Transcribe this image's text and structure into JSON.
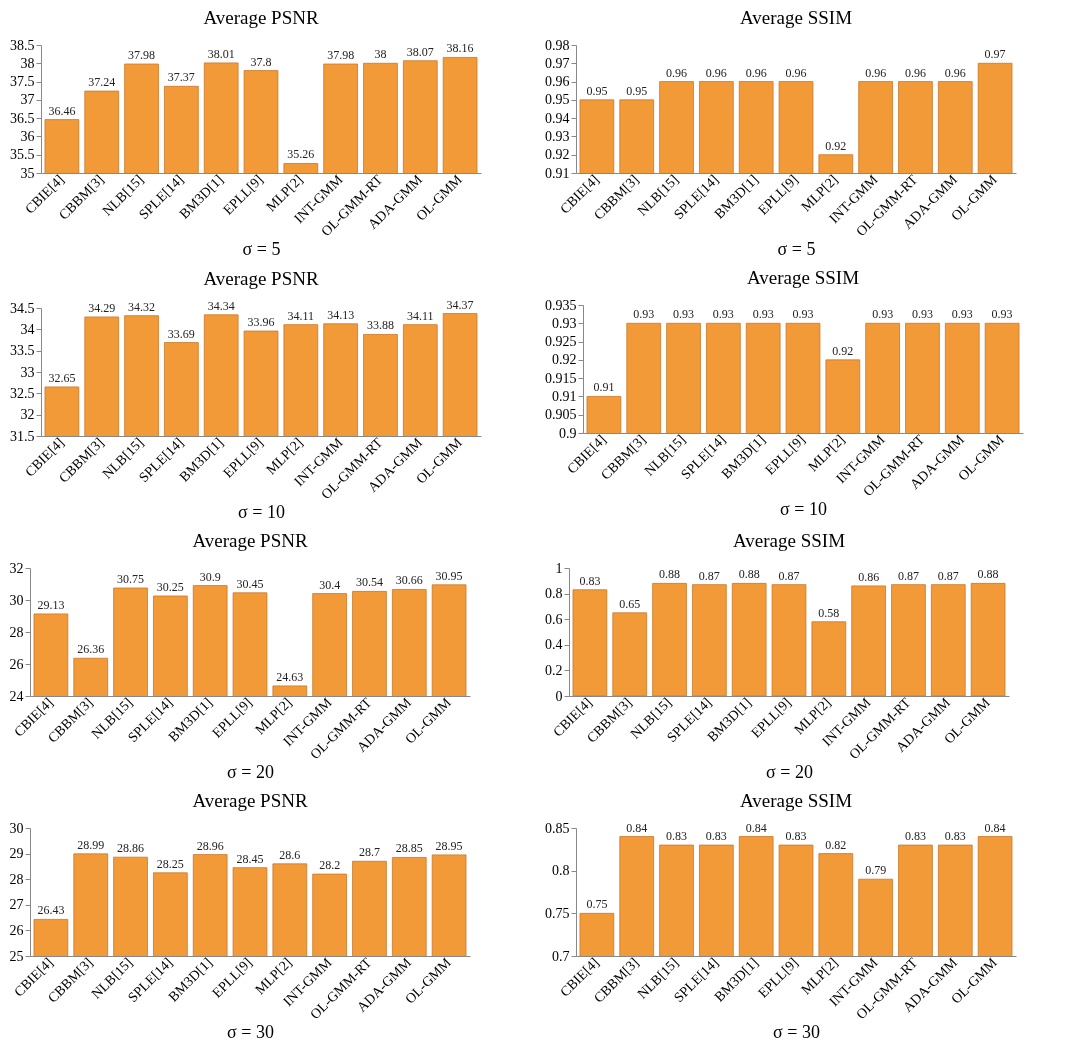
{
  "chart_data": [
    {
      "type": "bar",
      "title": "Average PSNR",
      "xlabel": "σ = 5",
      "categories": [
        "CBIE[4]",
        "CBBM[3]",
        "NLB[15]",
        "SPLE[14]",
        "BM3D[1]",
        "EPLL[9]",
        "MLP[2]",
        "INT-GMM",
        "OL-GMM-RT",
        "ADA-GMM",
        "OL-GMM"
      ],
      "values": [
        36.46,
        37.24,
        37.98,
        37.37,
        38.01,
        37.8,
        35.26,
        37.98,
        38,
        38.07,
        38.16
      ],
      "color": "#f39a38",
      "ylim": [
        35,
        38.5
      ],
      "yticks": [
        35,
        35.5,
        36,
        36.5,
        37,
        37.5,
        38,
        38.5
      ],
      "data_labels": true
    },
    {
      "type": "bar",
      "title": "Average SSIM",
      "xlabel": "σ = 5",
      "categories": [
        "CBIE[4]",
        "CBBM[3]",
        "NLB[15]",
        "SPLE[14]",
        "BM3D[1]",
        "EPLL[9]",
        "MLP[2]",
        "INT-GMM",
        "OL-GMM-RT",
        "ADA-GMM",
        "OL-GMM"
      ],
      "values": [
        0.95,
        0.95,
        0.96,
        0.96,
        0.96,
        0.96,
        0.92,
        0.96,
        0.96,
        0.96,
        0.97
      ],
      "color": "#f39a38",
      "ylim": [
        0.91,
        0.98
      ],
      "yticks": [
        0.91,
        0.92,
        0.93,
        0.94,
        0.95,
        0.96,
        0.97,
        0.98
      ],
      "data_labels": true
    },
    {
      "type": "bar",
      "title": "Average PSNR",
      "xlabel": "σ = 10",
      "categories": [
        "CBIE[4]",
        "CBBM[3]",
        "NLB[15]",
        "SPLE[14]",
        "BM3D[1]",
        "EPLL[9]",
        "MLP[2]",
        "INT-GMM",
        "OL-GMM-RT",
        "ADA-GMM",
        "OL-GMM"
      ],
      "values": [
        32.65,
        34.29,
        34.32,
        33.69,
        34.34,
        33.96,
        34.11,
        34.13,
        33.88,
        34.11,
        34.37
      ],
      "color": "#f39a38",
      "ylim": [
        31.5,
        34.5
      ],
      "yticks": [
        31.5,
        32,
        32.5,
        33,
        33.5,
        34,
        34.5
      ],
      "data_labels": true
    },
    {
      "type": "bar",
      "title": "Average SSIM",
      "xlabel": "σ = 10",
      "categories": [
        "CBIE[4]",
        "CBBM[3]",
        "NLB[15]",
        "SPLE[14]",
        "BM3D[1]",
        "EPLL[9]",
        "MLP[2]",
        "INT-GMM",
        "OL-GMM-RT",
        "ADA-GMM",
        "OL-GMM"
      ],
      "values": [
        0.91,
        0.93,
        0.93,
        0.93,
        0.93,
        0.93,
        0.92,
        0.93,
        0.93,
        0.93,
        0.93
      ],
      "color": "#f39a38",
      "ylim": [
        0.9,
        0.935
      ],
      "yticks": [
        0.9,
        0.905,
        0.91,
        0.915,
        0.92,
        0.925,
        0.93,
        0.935
      ],
      "data_labels": true
    },
    {
      "type": "bar",
      "title": "Average PSNR",
      "xlabel": "σ = 20",
      "categories": [
        "CBIE[4]",
        "CBBM[3]",
        "NLB[15]",
        "SPLE[14]",
        "BM3D[1]",
        "EPLL[9]",
        "MLP[2]",
        "INT-GMM",
        "OL-GMM-RT",
        "ADA-GMM",
        "OL-GMM"
      ],
      "values": [
        29.13,
        26.36,
        30.75,
        30.25,
        30.9,
        30.45,
        24.63,
        30.4,
        30.54,
        30.66,
        30.95
      ],
      "color": "#f39a38",
      "ylim": [
        24,
        32
      ],
      "yticks": [
        24,
        26,
        28,
        30,
        32
      ],
      "data_labels": true
    },
    {
      "type": "bar",
      "title": "Average SSIM",
      "xlabel": "σ = 20",
      "categories": [
        "CBIE[4]",
        "CBBM[3]",
        "NLB[15]",
        "SPLE[14]",
        "BM3D[1]",
        "EPLL[9]",
        "MLP[2]",
        "INT-GMM",
        "OL-GMM-RT",
        "ADA-GMM",
        "OL-GMM"
      ],
      "values": [
        0.83,
        0.65,
        0.88,
        0.87,
        0.88,
        0.87,
        0.58,
        0.86,
        0.87,
        0.87,
        0.88
      ],
      "color": "#f39a38",
      "ylim": [
        0,
        1
      ],
      "yticks": [
        0,
        0.2,
        0.4,
        0.6,
        0.8,
        1
      ],
      "data_labels": true
    },
    {
      "type": "bar",
      "title": "Average PSNR",
      "xlabel": "σ = 30",
      "categories": [
        "CBIE[4]",
        "CBBM[3]",
        "NLB[15]",
        "SPLE[14]",
        "BM3D[1]",
        "EPLL[9]",
        "MLP[2]",
        "INT-GMM",
        "OL-GMM-RT",
        "ADA-GMM",
        "OL-GMM"
      ],
      "values": [
        26.43,
        28.99,
        28.86,
        28.25,
        28.96,
        28.45,
        28.6,
        28.2,
        28.7,
        28.85,
        28.95
      ],
      "color": "#f39a38",
      "ylim": [
        25,
        30
      ],
      "yticks": [
        25,
        26,
        27,
        28,
        29,
        30
      ],
      "data_labels": true
    },
    {
      "type": "bar",
      "title": "Average SSIM",
      "xlabel": "σ = 30",
      "categories": [
        "CBIE[4]",
        "CBBM[3]",
        "NLB[15]",
        "SPLE[14]",
        "BM3D[1]",
        "EPLL[9]",
        "MLP[2]",
        "INT-GMM",
        "OL-GMM-RT",
        "ADA-GMM",
        "OL-GMM"
      ],
      "values": [
        0.75,
        0.84,
        0.83,
        0.83,
        0.84,
        0.83,
        0.82,
        0.79,
        0.83,
        0.83,
        0.84
      ],
      "color": "#f39a38",
      "ylim": [
        0.7,
        0.85
      ],
      "yticks": [
        0.7,
        0.75,
        0.8,
        0.85
      ],
      "data_labels": true
    }
  ]
}
